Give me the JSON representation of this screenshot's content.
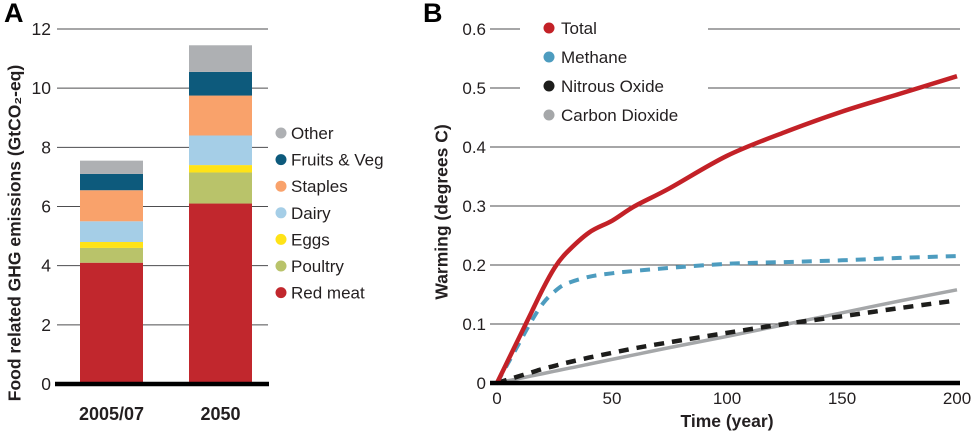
{
  "panels": [
    {
      "label": "A"
    },
    {
      "label": "B"
    }
  ],
  "colors": {
    "grid": "#4d4d4f",
    "axis": "#000000",
    "text": "#231f20",
    "legend_background": "#ffffff"
  },
  "chart_data": [
    {
      "type": "bar",
      "stacked": true,
      "panel": "A",
      "ylabel": "Food related GHG emissions (GtCO₂-eq)",
      "categories": [
        "2005/07",
        "2050"
      ],
      "series": [
        {
          "name": "Red meat",
          "color": "#c1272d",
          "values": [
            4.1,
            6.1
          ]
        },
        {
          "name": "Poultry",
          "color": "#b9c36a",
          "values": [
            0.5,
            1.05
          ]
        },
        {
          "name": "Eggs",
          "color": "#ffe317",
          "values": [
            0.2,
            0.25
          ]
        },
        {
          "name": "Dairy",
          "color": "#a5cee7",
          "values": [
            0.7,
            1.0
          ]
        },
        {
          "name": "Staples",
          "color": "#f9a26b",
          "values": [
            1.05,
            1.35
          ]
        },
        {
          "name": "Fruits & Veg",
          "color": "#0d5a7c",
          "values": [
            0.55,
            0.8
          ]
        },
        {
          "name": "Other",
          "color": "#aeb0b3",
          "values": [
            0.45,
            0.9
          ]
        }
      ],
      "totals": [
        7.55,
        11.45
      ],
      "ylim": [
        0,
        12
      ],
      "yticks": [
        0,
        2,
        4,
        6,
        8,
        10,
        12
      ],
      "grid": true,
      "legend_position": "right",
      "legend_order_note": "legend listed top-to-bottom as reverse of stack order"
    },
    {
      "type": "line",
      "panel": "B",
      "xlabel": "Time (year)",
      "ylabel": "Warming (degrees C)",
      "xlim": [
        0,
        200
      ],
      "ylim": [
        0,
        0.6
      ],
      "xticks": [
        0,
        50,
        100,
        150,
        200
      ],
      "yticks": [
        0,
        0.1,
        0.2,
        0.3,
        0.4,
        0.5,
        0.6
      ],
      "x": [
        0,
        5,
        10,
        15,
        20,
        25,
        30,
        40,
        50,
        60,
        75,
        100,
        125,
        150,
        175,
        200
      ],
      "series": [
        {
          "name": "Total",
          "color": "#c32127",
          "style": "solid",
          "width": 4.5,
          "values": [
            0,
            0.04,
            0.08,
            0.12,
            0.16,
            0.195,
            0.22,
            0.255,
            0.275,
            0.3,
            0.33,
            0.385,
            0.425,
            0.46,
            0.49,
            0.52
          ]
        },
        {
          "name": "Methane",
          "color": "#4d9cbf",
          "style": "dashed",
          "width": 4,
          "values": [
            0,
            0.035,
            0.07,
            0.105,
            0.135,
            0.155,
            0.168,
            0.18,
            0.186,
            0.19,
            0.195,
            0.202,
            0.205,
            0.208,
            0.212,
            0.215
          ]
        },
        {
          "name": "Nitrous Oxide",
          "color": "#1d1d1b",
          "style": "dashed",
          "width": 4.5,
          "values": [
            0,
            0.006,
            0.012,
            0.018,
            0.024,
            0.029,
            0.034,
            0.043,
            0.051,
            0.059,
            0.069,
            0.085,
            0.1,
            0.113,
            0.127,
            0.14
          ]
        },
        {
          "name": "Carbon Dioxide",
          "color": "#a5a7a9",
          "style": "solid",
          "width": 3.5,
          "values": [
            0,
            0.004,
            0.008,
            0.012,
            0.016,
            0.02,
            0.024,
            0.032,
            0.04,
            0.048,
            0.06,
            0.079,
            0.099,
            0.119,
            0.139,
            0.158
          ]
        }
      ],
      "grid": true,
      "legend_position": "top-left"
    }
  ]
}
